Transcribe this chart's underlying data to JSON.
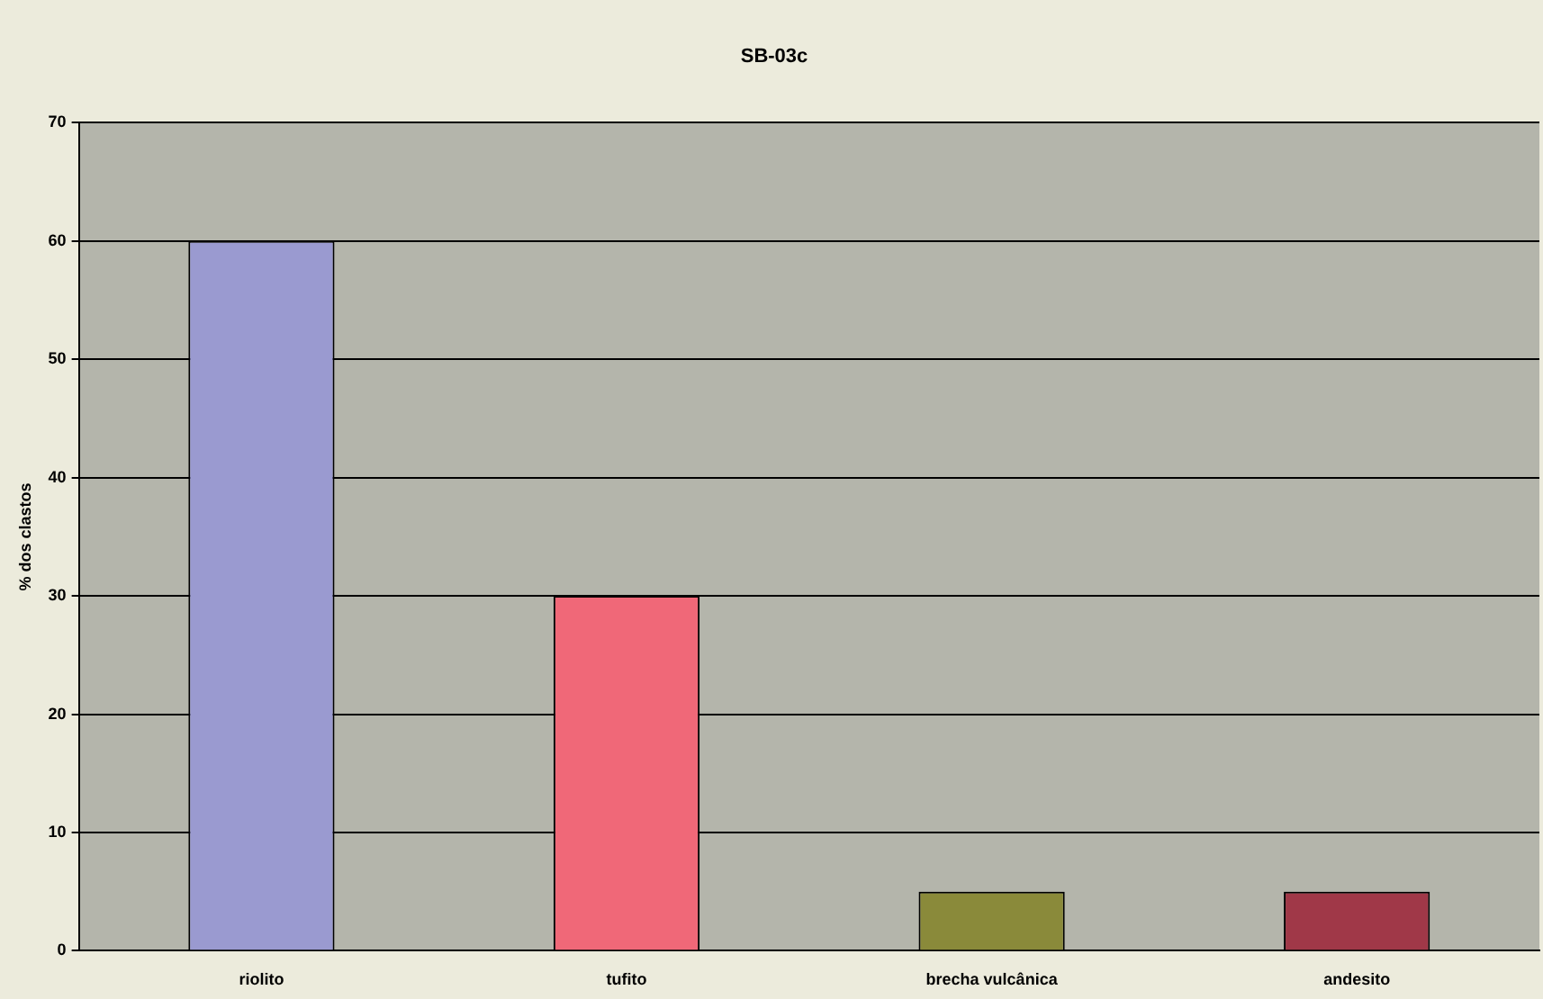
{
  "chart_data": {
    "type": "bar",
    "title": "SB-03c",
    "ylabel": "% dos clastos",
    "categories": [
      "riolito",
      "tufito",
      "brecha vulcânica",
      "andesito"
    ],
    "values": [
      60,
      30,
      5,
      5
    ],
    "colors": [
      "#9a9ad0",
      "#f06878",
      "#8a8a3a",
      "#a03848"
    ],
    "ylim": [
      0,
      70
    ],
    "yticks": [
      0,
      10,
      20,
      30,
      40,
      50,
      60,
      70
    ],
    "grid": "y",
    "legend": false
  }
}
